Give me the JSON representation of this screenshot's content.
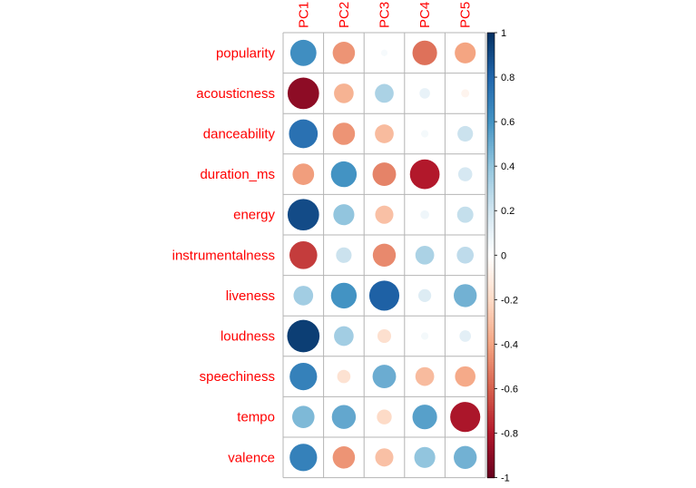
{
  "chart_data": {
    "type": "heatmap",
    "style": "circle",
    "rows": [
      "popularity",
      "acousticness",
      "danceability",
      "duration_ms",
      "energy",
      "instrumentalness",
      "liveness",
      "loudness",
      "speechiness",
      "tempo",
      "valence"
    ],
    "columns": [
      "PC1",
      "PC2",
      "PC3",
      "PC4",
      "PC5"
    ],
    "values": [
      [
        0.62,
        -0.45,
        0.04,
        -0.55,
        -0.4
      ],
      [
        -0.9,
        -0.35,
        0.32,
        0.1,
        -0.06
      ],
      [
        0.75,
        -0.45,
        -0.32,
        0.05,
        0.22
      ],
      [
        -0.42,
        0.6,
        -0.5,
        -0.8,
        0.18
      ],
      [
        0.9,
        0.4,
        -0.3,
        0.07,
        0.24
      ],
      [
        -0.7,
        0.22,
        -0.48,
        0.32,
        0.26
      ],
      [
        0.35,
        0.6,
        0.82,
        0.15,
        0.48
      ],
      [
        0.95,
        0.35,
        -0.17,
        0.05,
        0.12
      ],
      [
        0.68,
        -0.16,
        0.5,
        -0.32,
        -0.38
      ],
      [
        0.45,
        0.52,
        -0.2,
        0.55,
        -0.82
      ],
      [
        0.68,
        -0.45,
        -0.3,
        0.4,
        0.48
      ]
    ],
    "colorbar": {
      "range": [
        -1,
        1
      ],
      "ticks": [
        "1",
        "0.8",
        "0.6",
        "0.4",
        "0.2",
        "0",
        "-0.2",
        "-0.4",
        "-0.6",
        "-0.8",
        "-1"
      ],
      "palette": [
        "#67001F",
        "#B2182B",
        "#D6604D",
        "#F4A582",
        "#FDDBC7",
        "#FFFFFF",
        "#D1E5F0",
        "#92C5DE",
        "#4393C3",
        "#2166AC",
        "#053061"
      ]
    },
    "grid": true,
    "label_color": "#ff0000"
  }
}
